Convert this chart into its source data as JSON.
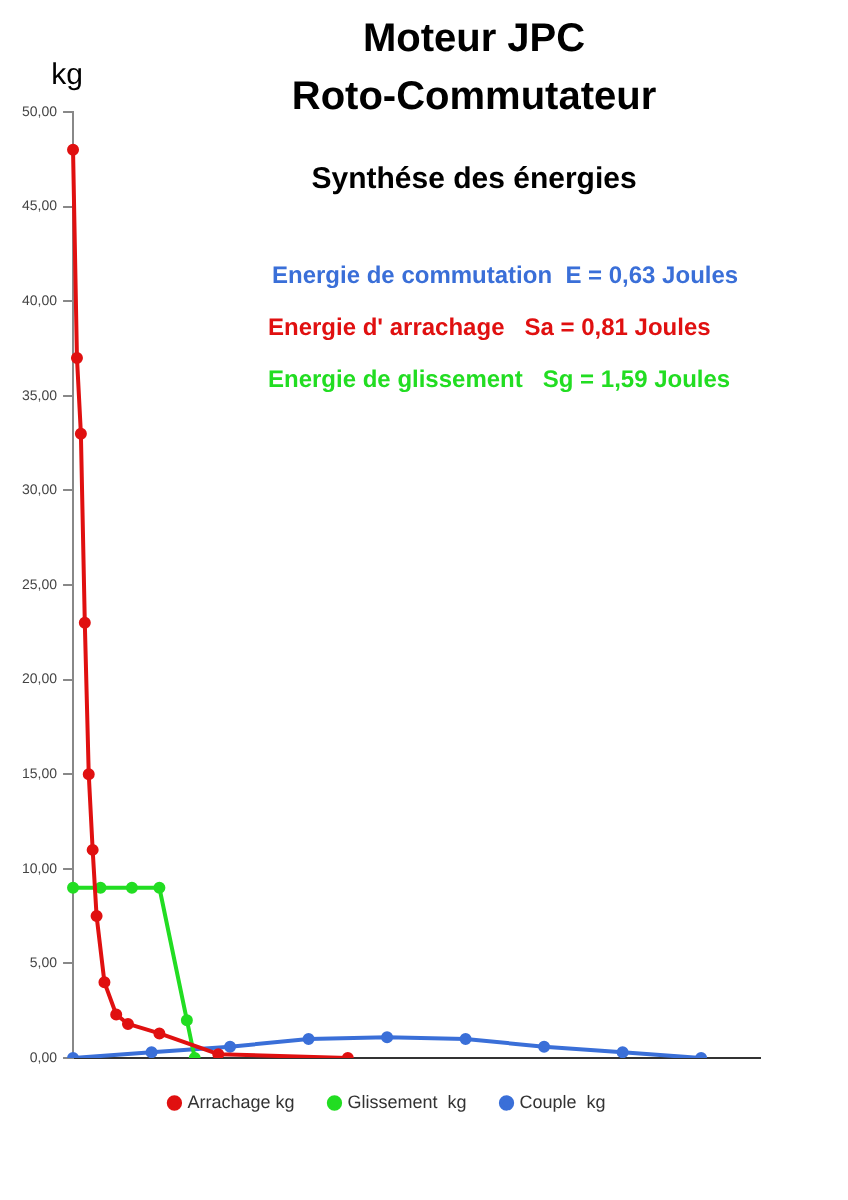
{
  "chart_data": {
    "type": "line",
    "title": [
      "Moteur JPC",
      "Roto-Commutateur"
    ],
    "subtitle": "Synthése des énergies",
    "ylabel": "kg",
    "annotations": [
      "Energie de commutation  E = 0,63 Joules",
      "Energie d' arrachage   Sa = 0,81 Joules",
      "Energie de glissement   Sg = 1,59 Joules"
    ],
    "categories": [
      null,
      null,
      null,
      null,
      null,
      null,
      null,
      null,
      null,
      null,
      null,
      null,
      null,
      null,
      null,
      null,
      null,
      null,
      null,
      null,
      null,
      null,
      null,
      null,
      null,
      null,
      null,
      null,
      null,
      null,
      null,
      null,
      null,
      null,
      null,
      null,
      null,
      null,
      null,
      null,
      null,
      null,
      null,
      null,
      null,
      null,
      null,
      null,
      null,
      null,
      null,
      null,
      null,
      null,
      null,
      null,
      null,
      null,
      null,
      null,
      null,
      null,
      null,
      null,
      null,
      null,
      null,
      null,
      null,
      null,
      null,
      null,
      null,
      null,
      null,
      null,
      null,
      null,
      null,
      null,
      null,
      null,
      null,
      null,
      null,
      null,
      null,
      null,
      null,
      null,
      null,
      null,
      null,
      null,
      null,
      null,
      null,
      null,
      null,
      null,
      null,
      null,
      null,
      null,
      null,
      null,
      null,
      null,
      null,
      null,
      null,
      null,
      null,
      null,
      null,
      null,
      null,
      null,
      null,
      null,
      null,
      null,
      null,
      null,
      null,
      null,
      null,
      null,
      null,
      null,
      null,
      null,
      null,
      null,
      null,
      null,
      null,
      null,
      null,
      null,
      null,
      null,
      null,
      null,
      null,
      null,
      null,
      null,
      null,
      null,
      null,
      null,
      null,
      null,
      null,
      null,
      null,
      null,
      null,
      null,
      null,
      null,
      null,
      null,
      null,
      null,
      null,
      null,
      null,
      null,
      null,
      null,
      null,
      null,
      null,
      null
    ],
    "ylim": [
      0,
      50
    ],
    "yticks": [
      {
        "value": 0,
        "label": "0,00"
      },
      {
        "value": 5,
        "label": "5,00"
      },
      {
        "value": 10,
        "label": "10,00"
      },
      {
        "value": 15,
        "label": "15,00"
      },
      {
        "value": 20,
        "label": "20,00"
      },
      {
        "value": 25,
        "label": "25,00"
      },
      {
        "value": 30,
        "label": "30,00"
      },
      {
        "value": 35,
        "label": "35,00"
      },
      {
        "value": 40,
        "label": "40,00"
      },
      {
        "value": 45,
        "label": "45,00"
      },
      {
        "value": 50,
        "label": "50,00"
      }
    ],
    "tick_labels": "y",
    "legend": "bottom",
    "marker": "circle",
    "series": [
      {
        "name": "Arrachage kg",
        "color": "#e01010",
        "values": [
          48,
          37,
          33,
          23,
          15,
          11,
          7.5,
          null,
          4,
          null,
          null,
          2.3,
          null,
          null,
          1.8,
          null,
          null,
          null,
          null,
          null,
          null,
          null,
          1.3,
          null,
          null,
          null,
          null,
          null,
          null,
          null,
          null,
          null,
          null,
          null,
          null,
          null,
          null,
          0.2,
          null,
          null,
          null,
          null,
          null,
          null,
          null,
          null,
          null,
          null,
          null,
          null,
          null,
          null,
          null,
          null,
          null,
          null,
          null,
          null,
          null,
          null,
          null,
          null,
          null,
          null,
          null,
          null,
          null,
          null,
          null,
          null,
          0,
          null,
          null,
          null,
          null,
          null,
          null,
          null,
          null,
          null,
          null,
          null,
          null,
          null,
          null,
          null,
          null,
          null,
          null,
          null,
          null,
          null,
          null,
          null,
          null,
          null,
          null,
          null,
          null,
          null,
          null,
          null,
          null,
          null,
          null,
          null,
          null,
          null,
          null,
          null,
          null,
          null,
          null,
          null,
          null,
          null,
          null,
          null,
          null,
          null,
          null,
          null,
          null,
          null,
          null,
          null,
          null,
          null,
          null,
          null,
          null,
          null,
          null,
          null,
          null,
          null,
          null,
          null,
          null,
          null,
          null,
          null,
          null,
          null,
          null,
          null,
          null,
          null,
          null,
          null,
          null,
          null,
          null,
          null,
          null,
          null,
          null,
          null,
          null,
          null,
          null,
          null,
          null,
          null,
          null,
          null,
          null,
          null,
          null,
          null,
          null,
          null,
          null,
          null,
          null,
          null
        ]
      },
      {
        "name": "Glissement  kg",
        "color": "#22dd22",
        "values": [
          9,
          null,
          null,
          null,
          null,
          null,
          null,
          9,
          null,
          null,
          null,
          null,
          null,
          null,
          null,
          9,
          null,
          null,
          null,
          null,
          null,
          null,
          9,
          null,
          null,
          null,
          null,
          null,
          null,
          2,
          null,
          0,
          null,
          null,
          null,
          null,
          null,
          null,
          null,
          null,
          null,
          null,
          null,
          null,
          null,
          null,
          null,
          null,
          null,
          null,
          null,
          null,
          null,
          null,
          null,
          null,
          null,
          null,
          null,
          null,
          null,
          null,
          null,
          null,
          null,
          null,
          null,
          null,
          null,
          null,
          null,
          null,
          null,
          null,
          null,
          null,
          null,
          null,
          null,
          null,
          null,
          null,
          null,
          null,
          null,
          null,
          null,
          null,
          null,
          null,
          null,
          null,
          null,
          null,
          null,
          null,
          null,
          null,
          null,
          null,
          null,
          null,
          null,
          null,
          null,
          null,
          null,
          null,
          null,
          null,
          null,
          null,
          null,
          null,
          null,
          null,
          null,
          null,
          null,
          null,
          null,
          null,
          null,
          null,
          null,
          null,
          null,
          null,
          null,
          null,
          null,
          null,
          null,
          null,
          null,
          null,
          null,
          null,
          null,
          null,
          null,
          null,
          null,
          null,
          null,
          null,
          null,
          null,
          null,
          null,
          null,
          null,
          null,
          null,
          null,
          null,
          null,
          null,
          null,
          null,
          null,
          null,
          null,
          null,
          null,
          null,
          null,
          null,
          null,
          null,
          null,
          null,
          null,
          null,
          null,
          null
        ]
      },
      {
        "name": "Couple  kg",
        "color": "#3a6fd8",
        "values": [
          0,
          null,
          null,
          null,
          null,
          null,
          null,
          null,
          null,
          null,
          null,
          null,
          null,
          null,
          null,
          null,
          null,
          null,
          null,
          null,
          0.3,
          null,
          null,
          null,
          null,
          null,
          null,
          null,
          null,
          null,
          null,
          null,
          null,
          null,
          null,
          null,
          null,
          null,
          null,
          null,
          0.6,
          null,
          null,
          null,
          null,
          null,
          null,
          null,
          null,
          null,
          null,
          null,
          null,
          null,
          null,
          null,
          null,
          null,
          null,
          null,
          1,
          null,
          null,
          null,
          null,
          null,
          null,
          null,
          null,
          null,
          null,
          null,
          null,
          null,
          null,
          null,
          null,
          null,
          null,
          null,
          1.1,
          null,
          null,
          null,
          null,
          null,
          null,
          null,
          null,
          null,
          null,
          null,
          null,
          null,
          null,
          null,
          null,
          null,
          null,
          null,
          1,
          null,
          null,
          null,
          null,
          null,
          null,
          null,
          null,
          null,
          null,
          null,
          null,
          null,
          null,
          null,
          null,
          null,
          null,
          null,
          0.6,
          null,
          null,
          null,
          null,
          null,
          null,
          null,
          null,
          null,
          null,
          null,
          null,
          null,
          null,
          null,
          null,
          null,
          null,
          null,
          0.3,
          null,
          null,
          null,
          null,
          null,
          null,
          null,
          null,
          null,
          null,
          null,
          null,
          null,
          null,
          null,
          null,
          null,
          null,
          null,
          0,
          null,
          null,
          null,
          null,
          null,
          null,
          null,
          null,
          null,
          null,
          null,
          null,
          null,
          null,
          null
        ]
      }
    ]
  }
}
